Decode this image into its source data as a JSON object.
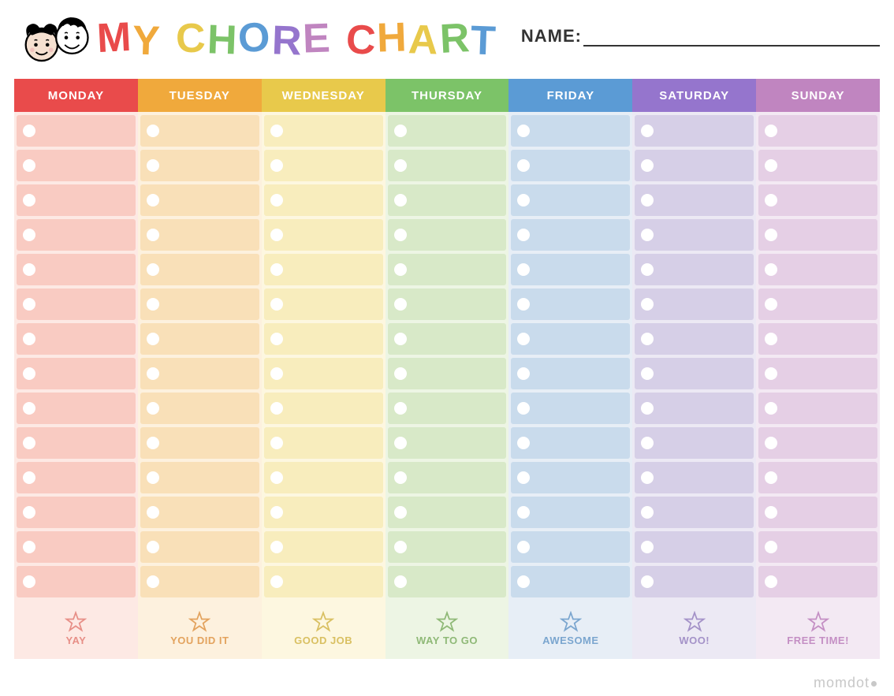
{
  "title_text": "MY CHORE CHART",
  "title_letters": [
    "M",
    "Y",
    " ",
    "C",
    "H",
    "O",
    "R",
    "E",
    " ",
    "C",
    "H",
    "A",
    "R",
    "T"
  ],
  "name_label": "NAME:",
  "row_count": 14,
  "columns": [
    {
      "day": "MONDAY",
      "header_color": "#e94b4b",
      "light_bg": "#fde9e4",
      "row_bg": "#f9cbc2",
      "accent": "#e78f87",
      "foot_text": "YAY"
    },
    {
      "day": "TUESDAY",
      "header_color": "#f0a93c",
      "light_bg": "#fdf1de",
      "row_bg": "#f9e0b8",
      "accent": "#e3a35e",
      "foot_text": "YOU DID IT"
    },
    {
      "day": "WEDNESDAY",
      "header_color": "#e8c94b",
      "light_bg": "#fdf7e0",
      "row_bg": "#f8edbd",
      "accent": "#d9c062",
      "foot_text": "GOOD JOB"
    },
    {
      "day": "THURSDAY",
      "header_color": "#7cc368",
      "light_bg": "#edf5e4",
      "row_bg": "#d8e9c8",
      "accent": "#8fb977",
      "foot_text": "WAY TO GO"
    },
    {
      "day": "FRIDAY",
      "header_color": "#5b9bd5",
      "light_bg": "#e7eef6",
      "row_bg": "#c9dbec",
      "accent": "#7ba6cf",
      "foot_text": "AWESOME"
    },
    {
      "day": "SATURDAY",
      "header_color": "#9575cd",
      "light_bg": "#ece9f4",
      "row_bg": "#d6cfe7",
      "accent": "#a492c8",
      "foot_text": "WOO!"
    },
    {
      "day": "SUNDAY",
      "header_color": "#c085c0",
      "light_bg": "#f3e9f3",
      "row_bg": "#e5cfe5",
      "accent": "#c48fc4",
      "foot_text": "FREE TIME!"
    }
  ],
  "watermark_text": "momdot"
}
